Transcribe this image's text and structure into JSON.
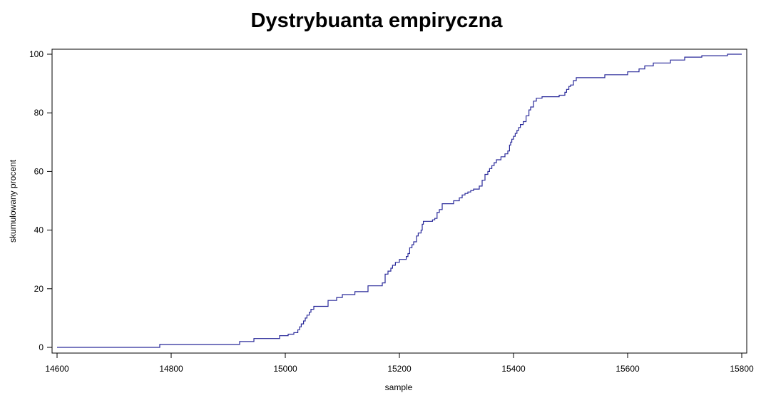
{
  "chart_data": {
    "type": "line",
    "step": true,
    "title": "Dystrybuanta empiryczna",
    "xlabel": "sample",
    "ylabel": "skumulowany procent",
    "xlim": [
      14600,
      15800
    ],
    "ylim": [
      0,
      100
    ],
    "xticks": [
      "14600",
      "14800",
      "15000",
      "15200",
      "15400",
      "15600",
      "15800"
    ],
    "yticks": [
      "0",
      "20",
      "40",
      "60",
      "80",
      "100"
    ],
    "grid": false,
    "legend": "none",
    "line_color": "#2a2a9a",
    "series": [
      {
        "x": [
          14600,
          14780,
          14920,
          14945,
          14990,
          15005,
          15015,
          15022,
          15025,
          15028,
          15032,
          15035,
          15038,
          15042,
          15045,
          15050,
          15075,
          15090,
          15100,
          15122,
          15145,
          15170,
          15175,
          15180,
          15185,
          15188,
          15193,
          15200,
          15212,
          15215,
          15218,
          15222,
          15225,
          15230,
          15233,
          15238,
          15240,
          15242,
          15258,
          15262,
          15266,
          15270,
          15275,
          15295,
          15305,
          15310,
          15315,
          15320,
          15325,
          15330,
          15340,
          15345,
          15350,
          15355,
          15358,
          15362,
          15366,
          15370,
          15378,
          15385,
          15390,
          15393,
          15395,
          15397,
          15400,
          15403,
          15406,
          15409,
          15412,
          15417,
          15422,
          15427,
          15430,
          15435,
          15440,
          15450,
          15480,
          15490,
          15493,
          15497,
          15500,
          15505,
          15510,
          15560,
          15600,
          15620,
          15630,
          15645,
          15675,
          15700,
          15730,
          15775,
          15800
        ],
        "y": [
          0,
          1,
          2,
          3,
          4,
          4.5,
          5,
          6,
          7,
          8,
          9,
          10,
          11,
          12,
          13,
          14,
          16,
          17,
          18,
          19,
          21,
          22,
          25,
          26,
          27,
          28,
          29,
          30,
          31,
          32,
          34,
          35,
          36,
          38,
          39,
          40,
          42,
          43,
          43.5,
          44,
          46,
          47,
          49,
          50,
          51,
          52,
          52.5,
          53,
          53.5,
          54,
          55,
          57,
          59,
          60,
          61,
          62,
          63,
          64,
          65,
          66,
          67,
          69,
          70,
          71,
          72,
          73,
          74,
          75,
          76,
          77,
          79,
          81,
          82,
          84,
          85,
          85.5,
          86,
          87,
          88,
          89,
          89.5,
          91,
          92,
          93,
          94,
          95,
          96,
          97,
          98,
          99,
          99.5,
          100,
          100
        ]
      }
    ]
  }
}
